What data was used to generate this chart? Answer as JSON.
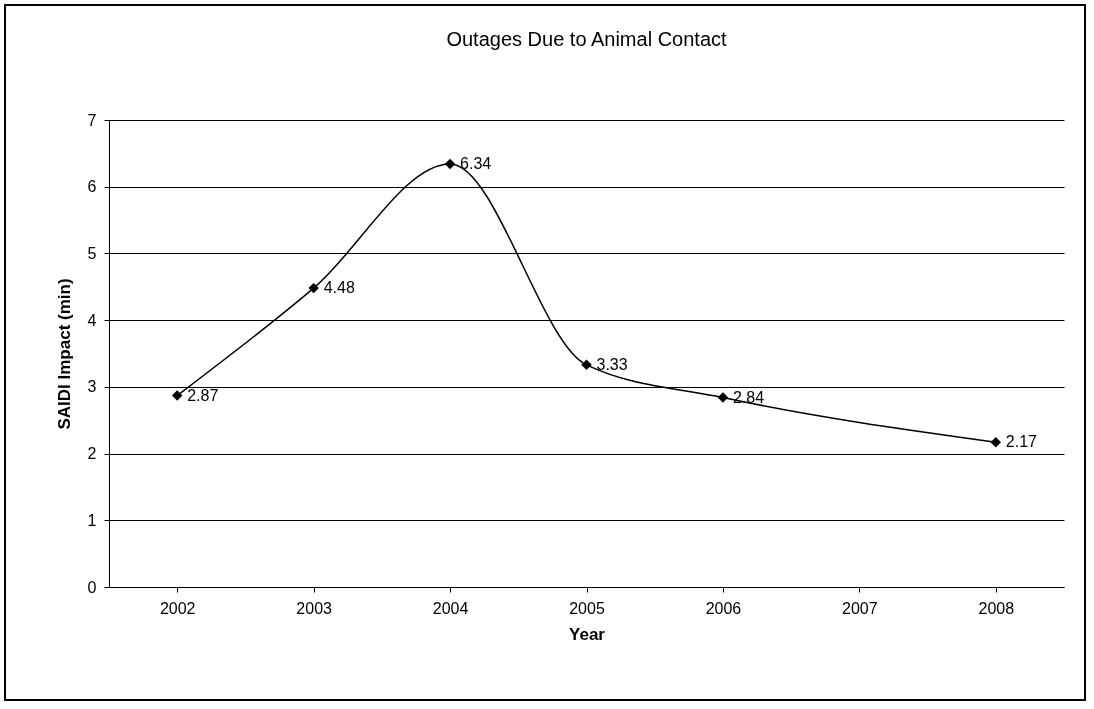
{
  "chart_data": {
    "type": "line",
    "title": "Outages Due to Animal Contact",
    "xlabel": "Year",
    "ylabel": "SAIDI Impact (min)",
    "x": [
      2002,
      2003,
      2004,
      2005,
      2006,
      2008
    ],
    "series": [
      {
        "color": "#000000",
        "values": [
          2.87,
          4.48,
          6.34,
          3.33,
          2.84,
          2.17
        ]
      }
    ],
    "xlim": [
      2001.5,
      2008.5
    ],
    "xticks": [
      2002,
      2003,
      2004,
      2005,
      2006,
      2007,
      2008
    ],
    "ylim": [
      0,
      7
    ],
    "yticks": [
      0,
      1,
      2,
      3,
      4,
      5,
      6,
      7
    ],
    "grid": "y",
    "marker": "diamond",
    "line_style": "solid",
    "data_labels": true
  }
}
